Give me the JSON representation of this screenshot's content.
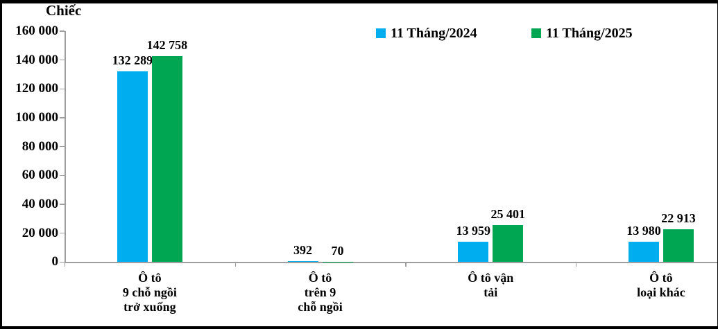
{
  "unit_title": "Chiếc",
  "legend": [
    {
      "label": "11 Tháng/2024",
      "color": "#00AEEF"
    },
    {
      "label": "11 Tháng/2025",
      "color": "#00A651"
    }
  ],
  "chart_data": {
    "type": "bar",
    "title": "Chiếc",
    "categories": [
      "Ô tô\n9 chỗ ngồi\ntrở xuống",
      "Ô tô\ntrên 9\nchỗ ngồi",
      "Ô tô vận\ntải",
      "Ô tô\nloại khác"
    ],
    "series": [
      {
        "name": "11 Tháng/2024",
        "color": "#00AEEF",
        "values": [
          132289,
          392,
          13959,
          13980
        ]
      },
      {
        "name": "11 Tháng/2025",
        "color": "#00A651",
        "values": [
          142758,
          70,
          25401,
          22913
        ]
      }
    ],
    "data_labels": [
      [
        "132 289",
        "392",
        "13 959",
        "13 980"
      ],
      [
        "142 758",
        "70",
        "25 401",
        "22 913"
      ]
    ],
    "ylabel": "Chiếc",
    "ylim": [
      0,
      160000
    ],
    "ytick_step": 20000,
    "ytick_labels": [
      "0",
      "20 000",
      "40 000",
      "60 000",
      "80 000",
      "100 000",
      "120 000",
      "140 000",
      "160 000"
    ],
    "grid": false,
    "legend_position": "top-center",
    "value_label_position": "above-bar"
  }
}
